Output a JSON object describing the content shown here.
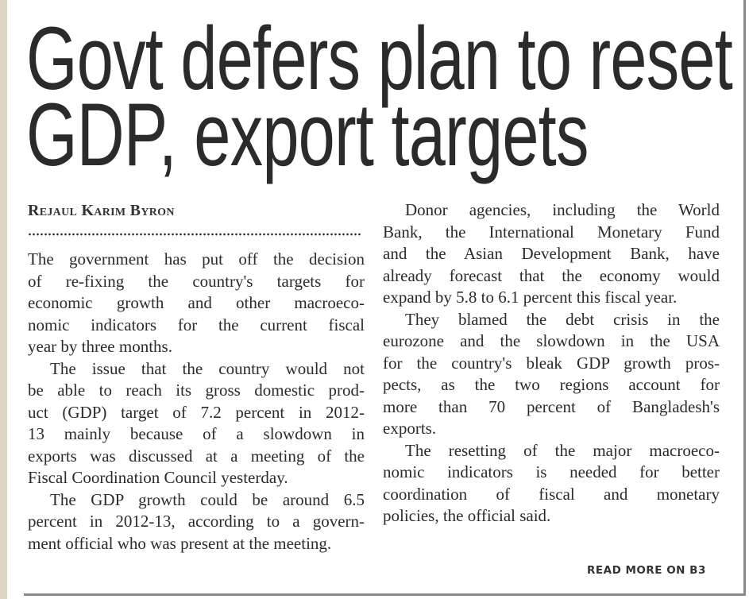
{
  "headline": [
    "Govt defers plan to reset",
    "GDP, export targets"
  ],
  "byline": "Rejaul Karim Byron",
  "left_column": [
    {
      "indent": false,
      "lines": [
        "The government has put off the decision",
        "of re-fixing the country's targets for",
        "economic growth and other macroeco-",
        "nomic indicators for the current fiscal",
        "year by three months."
      ]
    },
    {
      "indent": true,
      "lines": [
        "The issue that the country would not",
        "be able to reach its gross domestic prod-",
        "uct (GDP) target of 7.2 percent in 2012-",
        "13 mainly because of a slowdown in",
        "exports was discussed at a meeting of the",
        "Fiscal Coordination Council yesterday."
      ]
    },
    {
      "indent": true,
      "lines": [
        "The GDP growth could be around 6.5",
        "percent in 2012-13, according to a govern-",
        "ment official who was present at the meeting."
      ]
    }
  ],
  "right_column": [
    {
      "indent": true,
      "lines": [
        "Donor agencies, including the World",
        "Bank, the International Monetary Fund",
        "and the Asian Development Bank, have",
        "already forecast that the economy would",
        "expand by 5.8 to 6.1 percent this fiscal year."
      ]
    },
    {
      "indent": true,
      "lines": [
        "They blamed the debt crisis in the",
        "eurozone and the slowdown in the USA",
        "for the country's bleak GDP growth pros-",
        "pects, as the two regions account for",
        "more than 70 percent of Bangladesh's",
        "exports."
      ]
    },
    {
      "indent": true,
      "lines": [
        "The resetting of the major macroeco-",
        "nomic indicators is needed for better",
        "coordination of fiscal and monetary",
        "policies, the official said."
      ]
    }
  ],
  "read_more": "READ MORE ON B3",
  "colors": {
    "text": "#2b2b2b",
    "edge": "#ddd6c3",
    "frame": "#8a8a8a"
  }
}
